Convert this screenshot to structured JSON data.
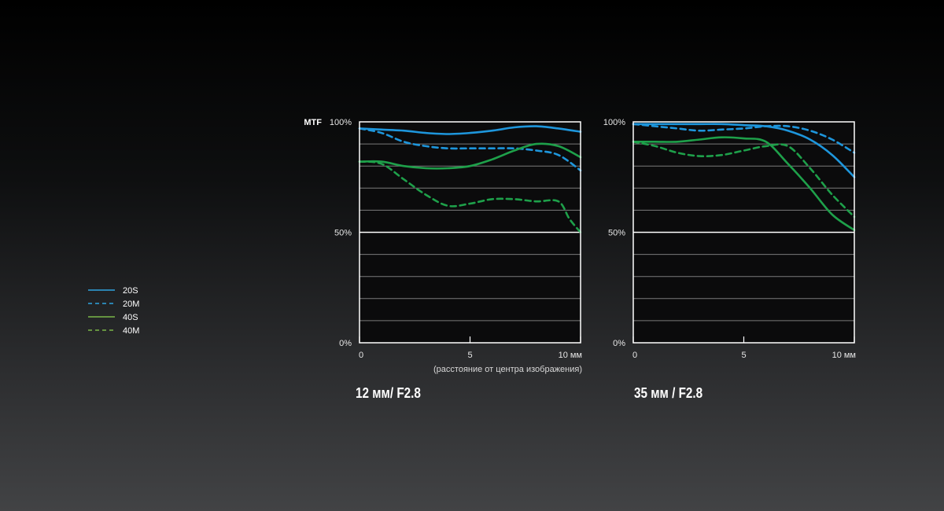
{
  "legend": {
    "items": [
      {
        "label": "20S",
        "color": "#2fa4e0",
        "dashed": false
      },
      {
        "label": "20M",
        "color": "#2fa4e0",
        "dashed": true
      },
      {
        "label": "40S",
        "color": "#7ab648",
        "dashed": false
      },
      {
        "label": "40M",
        "color": "#7ab648",
        "dashed": true
      }
    ]
  },
  "colors": {
    "series_20": "#1e96dc",
    "series_40": "#1ea04a",
    "frame": "#ffffff",
    "grid": "#7a7a7a",
    "plot_bg": "#0b0b0c"
  },
  "chart_data": [
    {
      "type": "line",
      "title": "12 мм/ F2.8",
      "ylabel": "MTF",
      "xlabel": "(расстояние от центра изображения)",
      "xlim": [
        0,
        10
      ],
      "ylim": [
        0,
        100
      ],
      "xticks": [
        "0",
        "5",
        "10 мм"
      ],
      "yticks": [
        "0%",
        "50%",
        "100%"
      ],
      "grid": true,
      "series": [
        {
          "name": "20S",
          "x": [
            0,
            1,
            2,
            3,
            4,
            5,
            6,
            7,
            8,
            9,
            10
          ],
          "y": [
            97,
            96.5,
            96,
            95,
            94.5,
            95,
            96,
            97.5,
            98,
            97,
            95.5
          ]
        },
        {
          "name": "20M",
          "x": [
            0,
            1,
            2,
            3,
            4,
            5,
            6,
            7,
            8,
            9,
            10
          ],
          "y": [
            97,
            95,
            91,
            89,
            88,
            88,
            88,
            88,
            87,
            85,
            78
          ]
        },
        {
          "name": "40S",
          "x": [
            0,
            1,
            2,
            3,
            4,
            5,
            6,
            7,
            8,
            9,
            10
          ],
          "y": [
            82,
            82,
            80,
            79,
            79,
            80,
            83,
            87,
            90,
            89,
            84
          ]
        },
        {
          "name": "40M",
          "x": [
            0,
            1,
            2,
            3,
            4,
            5,
            6,
            7,
            8,
            9,
            9.5,
            10
          ],
          "y": [
            82,
            81,
            74,
            67,
            62,
            63,
            65,
            65,
            64,
            64,
            56,
            50
          ]
        }
      ]
    },
    {
      "type": "line",
      "title": "35 мм / F2.8",
      "xlim": [
        0,
        10
      ],
      "ylim": [
        0,
        100
      ],
      "xticks": [
        "0",
        "5",
        "10 мм"
      ],
      "yticks": [
        "0%",
        "50%",
        "100%"
      ],
      "grid": true,
      "series": [
        {
          "name": "20S",
          "x": [
            0,
            1,
            2,
            3,
            4,
            5,
            6,
            7,
            8,
            9,
            10
          ],
          "y": [
            99,
            99,
            99,
            99,
            99,
            98.5,
            98,
            96,
            92,
            85,
            75
          ]
        },
        {
          "name": "20M",
          "x": [
            0,
            1,
            2,
            3,
            4,
            5,
            6,
            7,
            8,
            9,
            10
          ],
          "y": [
            99,
            98,
            97,
            96,
            96.5,
            97,
            98,
            98,
            96,
            92,
            86
          ]
        },
        {
          "name": "40S",
          "x": [
            0,
            1,
            2,
            3,
            4,
            5,
            6,
            7,
            8,
            9,
            10
          ],
          "y": [
            91,
            91,
            91,
            92,
            93,
            92.5,
            91,
            81,
            70,
            58,
            51
          ]
        },
        {
          "name": "40M",
          "x": [
            0,
            1,
            2,
            3,
            4,
            5,
            6,
            7,
            8,
            9,
            10
          ],
          "y": [
            91,
            89,
            86,
            84.5,
            85,
            87,
            89,
            89,
            79,
            67,
            57
          ]
        }
      ]
    }
  ]
}
